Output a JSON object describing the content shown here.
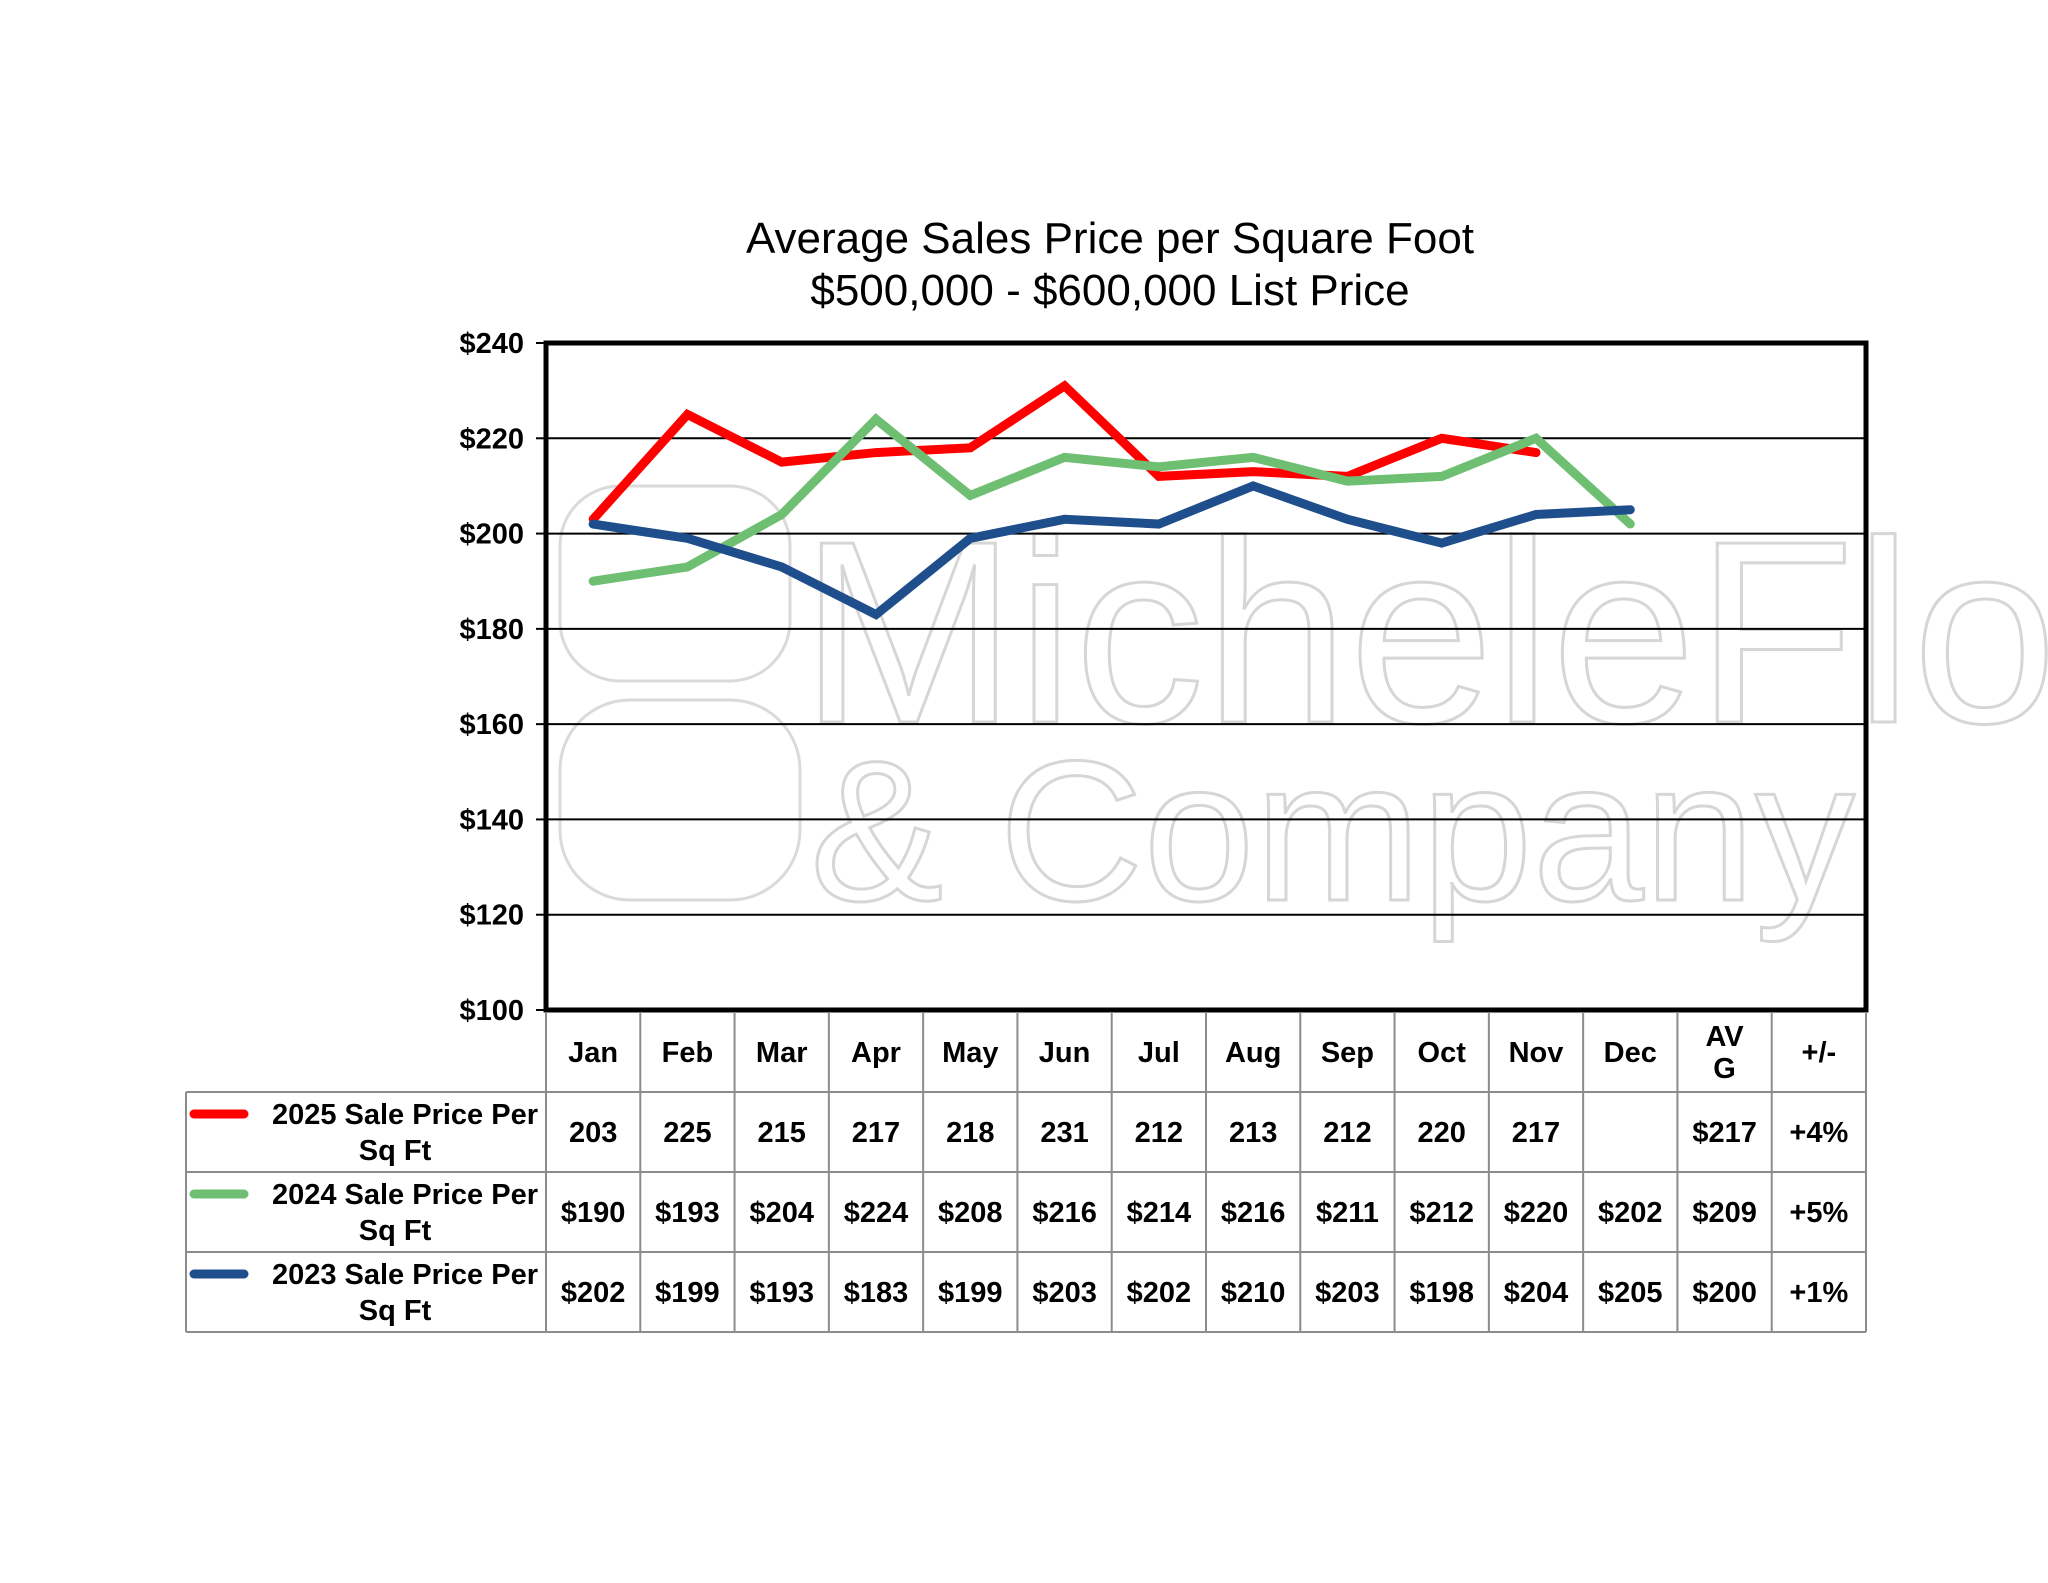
{
  "chart_data": {
    "type": "line",
    "title": "Average Sales Price per Square Foot",
    "subtitle": "$500,000 - $600,000 List Price",
    "categories": [
      "Jan",
      "Feb",
      "Mar",
      "Apr",
      "May",
      "Jun",
      "Jul",
      "Aug",
      "Sep",
      "Oct",
      "Nov",
      "Dec"
    ],
    "summary_headers": [
      "AV\nG",
      "+/-"
    ],
    "y_ticks": [
      "$100",
      "$120",
      "$140",
      "$160",
      "$180",
      "$200",
      "$220",
      "$240"
    ],
    "ylim": [
      100,
      240
    ],
    "ystep": 20,
    "grid": true,
    "series": [
      {
        "name": "2025 Sale Price Per Sq Ft",
        "color": "#ff0000",
        "values": [
          203,
          225,
          215,
          217,
          218,
          231,
          212,
          213,
          212,
          220,
          217,
          null
        ],
        "table_values": [
          "203",
          "225",
          "215",
          "217",
          "218",
          "231",
          "212",
          "213",
          "212",
          "220",
          "217",
          ""
        ],
        "avg": "$217",
        "change": "+4%"
      },
      {
        "name": "2024 Sale Price Per Sq Ft",
        "color": "#6fbf73",
        "values": [
          190,
          193,
          204,
          224,
          208,
          216,
          214,
          216,
          211,
          212,
          220,
          202
        ],
        "table_values": [
          "$190",
          "$193",
          "$204",
          "$224",
          "$208",
          "$216",
          "$214",
          "$216",
          "$211",
          "$212",
          "$220",
          "$202"
        ],
        "avg": "$209",
        "change": "+5%"
      },
      {
        "name": "2023 Sale Price Per Sq Ft",
        "color": "#1f4e8c",
        "values": [
          202,
          199,
          193,
          183,
          199,
          203,
          202,
          210,
          203,
          198,
          204,
          205
        ],
        "table_values": [
          "$202",
          "$199",
          "$193",
          "$183",
          "$199",
          "$203",
          "$202",
          "$210",
          "$203",
          "$198",
          "$204",
          "$205"
        ],
        "avg": "$200",
        "change": "+1%"
      }
    ]
  },
  "watermark": {
    "line1": "MicheleFlory",
    "line2": "& Company"
  }
}
